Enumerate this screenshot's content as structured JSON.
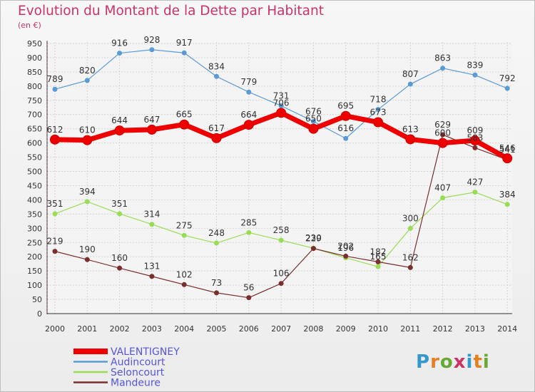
{
  "header": {
    "title": "Evolution du Montant de la Dette par Habitant",
    "unit": "(en €)"
  },
  "logo": {
    "text": "Proxiti",
    "colors": [
      "#3399cc",
      "#e67e22",
      "#66aa33",
      "#cc3366",
      "#3399cc",
      "#e67e22",
      "#66aa33"
    ]
  },
  "chart_data": {
    "type": "line",
    "title": "Evolution du Montant de la Dette par Habitant",
    "ylabel": "(en €)",
    "xlabel": "",
    "ylim": [
      0,
      950
    ],
    "yticks": [
      0,
      50,
      100,
      150,
      200,
      250,
      300,
      350,
      400,
      450,
      500,
      550,
      600,
      650,
      700,
      750,
      800,
      850,
      900,
      950
    ],
    "x": [
      "2000",
      "2001",
      "2002",
      "2003",
      "2004",
      "2005",
      "2006",
      "2007",
      "2008",
      "2009",
      "2010",
      "2011",
      "2012",
      "2013",
      "2014"
    ],
    "grid": true,
    "legend_position": "bottom-left",
    "series": [
      {
        "name": "VALENTIGNEY",
        "color": "#ee0000",
        "width": 7,
        "values": [
          612,
          610,
          644,
          647,
          665,
          617,
          664,
          706,
          650,
          695,
          673,
          613,
          600,
          609,
          546
        ]
      },
      {
        "name": "Audincourt",
        "color": "#5b9bd5",
        "width": 1.2,
        "values": [
          789,
          820,
          916,
          928,
          917,
          834,
          779,
          731,
          676,
          616,
          718,
          807,
          863,
          839,
          792
        ]
      },
      {
        "name": "Seloncourt",
        "color": "#99dd55",
        "width": 1.2,
        "values": [
          351,
          394,
          351,
          314,
          275,
          248,
          285,
          258,
          230,
          196,
          165,
          300,
          407,
          427,
          384
        ]
      },
      {
        "name": "Mandeure",
        "color": "#7a2e2e",
        "width": 1.2,
        "values": [
          219,
          190,
          160,
          131,
          102,
          73,
          56,
          106,
          229,
          202,
          182,
          162,
          629,
          583,
          541
        ]
      }
    ]
  }
}
